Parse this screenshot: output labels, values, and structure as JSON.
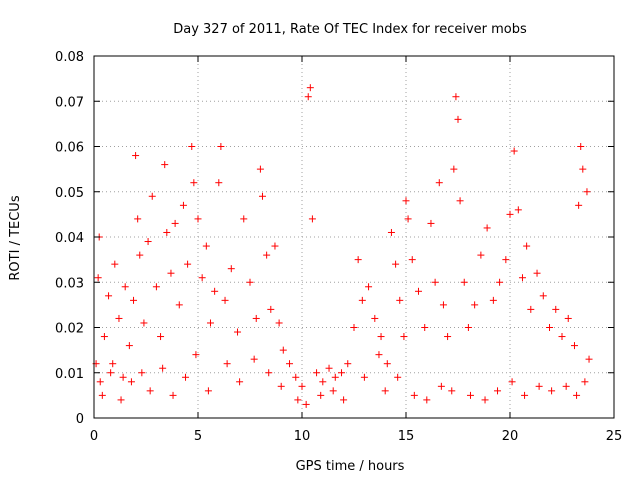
{
  "chart_data": {
    "type": "scatter",
    "title": "Day 327 of 2011, Rate Of TEC Index for receiver mobs",
    "xlabel": "GPS time / hours",
    "ylabel": "ROTI / TECUs",
    "xlim": [
      0,
      25
    ],
    "ylim": [
      0,
      0.08
    ],
    "x_ticks": [
      "0",
      "5",
      "10",
      "15",
      "20",
      "25"
    ],
    "y_ticks": [
      "0",
      "0.01",
      "0.02",
      "0.03",
      "0.04",
      "0.05",
      "0.06",
      "0.07",
      "0.08"
    ],
    "grid": true,
    "marker": "+",
    "color": "#ff0000",
    "series": [
      {
        "points": [
          [
            0.1,
            0.012
          ],
          [
            0.2,
            0.031
          ],
          [
            0.25,
            0.04
          ],
          [
            0.3,
            0.008
          ],
          [
            0.5,
            0.018
          ],
          [
            0.7,
            0.027
          ],
          [
            0.9,
            0.012
          ],
          [
            1.0,
            0.034
          ],
          [
            1.2,
            0.022
          ],
          [
            1.4,
            0.009
          ],
          [
            1.5,
            0.029
          ],
          [
            1.7,
            0.016
          ],
          [
            1.9,
            0.026
          ],
          [
            2.0,
            0.058
          ],
          [
            2.1,
            0.044
          ],
          [
            2.2,
            0.036
          ],
          [
            2.4,
            0.021
          ],
          [
            2.6,
            0.039
          ],
          [
            2.8,
            0.049
          ],
          [
            3.0,
            0.029
          ],
          [
            3.2,
            0.018
          ],
          [
            3.4,
            0.056
          ],
          [
            3.5,
            0.041
          ],
          [
            3.7,
            0.032
          ],
          [
            3.9,
            0.043
          ],
          [
            4.1,
            0.025
          ],
          [
            4.3,
            0.047
          ],
          [
            4.5,
            0.034
          ],
          [
            4.7,
            0.06
          ],
          [
            4.8,
            0.052
          ],
          [
            5.0,
            0.044
          ],
          [
            5.2,
            0.031
          ],
          [
            5.4,
            0.038
          ],
          [
            5.6,
            0.021
          ],
          [
            5.8,
            0.028
          ],
          [
            6.1,
            0.06
          ],
          [
            6.0,
            0.052
          ],
          [
            6.3,
            0.026
          ],
          [
            6.6,
            0.033
          ],
          [
            6.9,
            0.019
          ],
          [
            7.2,
            0.044
          ],
          [
            7.5,
            0.03
          ],
          [
            7.8,
            0.022
          ],
          [
            8.0,
            0.055
          ],
          [
            8.1,
            0.049
          ],
          [
            8.3,
            0.036
          ],
          [
            8.5,
            0.024
          ],
          [
            8.7,
            0.038
          ],
          [
            8.9,
            0.021
          ],
          [
            9.1,
            0.015
          ],
          [
            9.4,
            0.012
          ],
          [
            9.7,
            0.009
          ],
          [
            10.0,
            0.007
          ],
          [
            10.3,
            0.071
          ],
          [
            10.4,
            0.073
          ],
          [
            10.5,
            0.044
          ],
          [
            10.7,
            0.01
          ],
          [
            11.0,
            0.008
          ],
          [
            11.3,
            0.011
          ],
          [
            11.6,
            0.009
          ],
          [
            11.9,
            0.01
          ],
          [
            12.2,
            0.012
          ],
          [
            12.5,
            0.02
          ],
          [
            12.7,
            0.035
          ],
          [
            12.9,
            0.026
          ],
          [
            13.2,
            0.029
          ],
          [
            13.5,
            0.022
          ],
          [
            13.8,
            0.018
          ],
          [
            14.1,
            0.012
          ],
          [
            14.3,
            0.041
          ],
          [
            14.5,
            0.034
          ],
          [
            14.7,
            0.026
          ],
          [
            14.9,
            0.018
          ],
          [
            15.0,
            0.048
          ],
          [
            15.1,
            0.044
          ],
          [
            15.3,
            0.035
          ],
          [
            15.6,
            0.028
          ],
          [
            15.9,
            0.02
          ],
          [
            16.2,
            0.043
          ],
          [
            16.4,
            0.03
          ],
          [
            16.6,
            0.052
          ],
          [
            16.8,
            0.025
          ],
          [
            17.0,
            0.018
          ],
          [
            17.3,
            0.055
          ],
          [
            17.4,
            0.071
          ],
          [
            17.5,
            0.066
          ],
          [
            17.6,
            0.048
          ],
          [
            17.8,
            0.03
          ],
          [
            18.0,
            0.02
          ],
          [
            18.3,
            0.025
          ],
          [
            18.6,
            0.036
          ],
          [
            18.9,
            0.042
          ],
          [
            19.2,
            0.026
          ],
          [
            19.5,
            0.03
          ],
          [
            19.8,
            0.035
          ],
          [
            20.0,
            0.045
          ],
          [
            20.2,
            0.059
          ],
          [
            20.4,
            0.046
          ],
          [
            20.6,
            0.031
          ],
          [
            20.8,
            0.038
          ],
          [
            21.0,
            0.024
          ],
          [
            21.3,
            0.032
          ],
          [
            21.6,
            0.027
          ],
          [
            21.9,
            0.02
          ],
          [
            22.2,
            0.024
          ],
          [
            22.5,
            0.018
          ],
          [
            22.8,
            0.022
          ],
          [
            23.1,
            0.016
          ],
          [
            23.3,
            0.047
          ],
          [
            23.4,
            0.06
          ],
          [
            23.5,
            0.055
          ],
          [
            23.7,
            0.05
          ],
          [
            23.8,
            0.013
          ],
          [
            0.4,
            0.005
          ],
          [
            0.8,
            0.01
          ],
          [
            1.3,
            0.004
          ],
          [
            1.8,
            0.008
          ],
          [
            2.3,
            0.01
          ],
          [
            2.7,
            0.006
          ],
          [
            3.3,
            0.011
          ],
          [
            3.8,
            0.005
          ],
          [
            4.4,
            0.009
          ],
          [
            4.9,
            0.014
          ],
          [
            5.5,
            0.006
          ],
          [
            6.4,
            0.012
          ],
          [
            7.0,
            0.008
          ],
          [
            7.7,
            0.013
          ],
          [
            8.4,
            0.01
          ],
          [
            9.0,
            0.007
          ],
          [
            9.8,
            0.004
          ],
          [
            10.2,
            0.003
          ],
          [
            10.9,
            0.005
          ],
          [
            11.5,
            0.006
          ],
          [
            12.0,
            0.004
          ],
          [
            13.0,
            0.009
          ],
          [
            13.7,
            0.014
          ],
          [
            14.0,
            0.006
          ],
          [
            14.6,
            0.009
          ],
          [
            15.4,
            0.005
          ],
          [
            16.0,
            0.004
          ],
          [
            16.7,
            0.007
          ],
          [
            17.2,
            0.006
          ],
          [
            18.1,
            0.005
          ],
          [
            18.8,
            0.004
          ],
          [
            19.4,
            0.006
          ],
          [
            20.1,
            0.008
          ],
          [
            20.7,
            0.005
          ],
          [
            21.4,
            0.007
          ],
          [
            22.0,
            0.006
          ],
          [
            22.7,
            0.007
          ],
          [
            23.2,
            0.005
          ],
          [
            23.6,
            0.008
          ]
        ]
      }
    ]
  }
}
